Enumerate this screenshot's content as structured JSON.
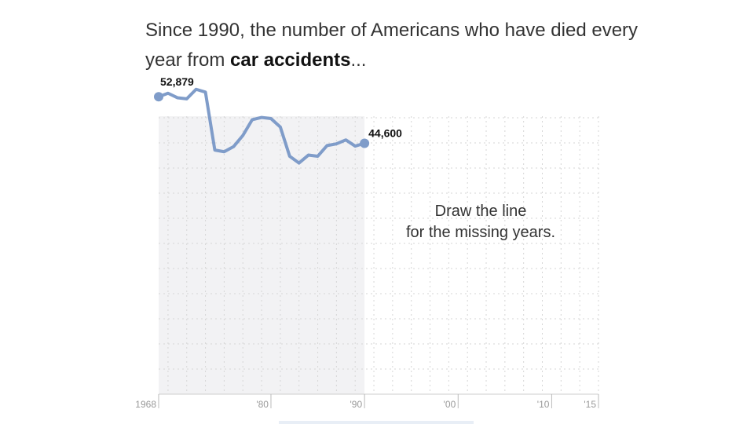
{
  "headline": {
    "prefix": "Since 1990, the number of Americans who have died every year from ",
    "emphasis": "car accidents",
    "suffix": "..."
  },
  "prompt": {
    "line1": "Draw the line",
    "line2": "for the missing years."
  },
  "colors": {
    "line": "#7f9cc9",
    "known_area": "#f2f2f4",
    "grid": "#d6d6d6",
    "tick": "#999999",
    "label": "#111111"
  },
  "chart_data": {
    "type": "line",
    "title": "",
    "xlabel": "",
    "ylabel": "",
    "xlim": [
      1968,
      2015
    ],
    "ylim": [
      0,
      55000
    ],
    "grid": true,
    "x": [
      1968,
      1969,
      1970,
      1971,
      1972,
      1973,
      1974,
      1975,
      1976,
      1977,
      1978,
      1979,
      1980,
      1981,
      1982,
      1983,
      1984,
      1985,
      1986,
      1987,
      1988,
      1989,
      1990
    ],
    "y": [
      52879,
      53500,
      52700,
      52500,
      54200,
      53700,
      43400,
      43100,
      44000,
      46000,
      48800,
      49200,
      49000,
      47500,
      42300,
      41100,
      42500,
      42300,
      44200,
      44500,
      45200,
      44100,
      44600
    ],
    "start_label": "52,879",
    "end_label": "44,600",
    "known_until": 1990,
    "x_ticks": [
      {
        "value": 1968,
        "label": "1968"
      },
      {
        "value": 1980,
        "label": "'80"
      },
      {
        "value": 1990,
        "label": "'90"
      },
      {
        "value": 2000,
        "label": "'00"
      },
      {
        "value": 2010,
        "label": "'10"
      },
      {
        "value": 2015,
        "label": "'15"
      }
    ]
  }
}
